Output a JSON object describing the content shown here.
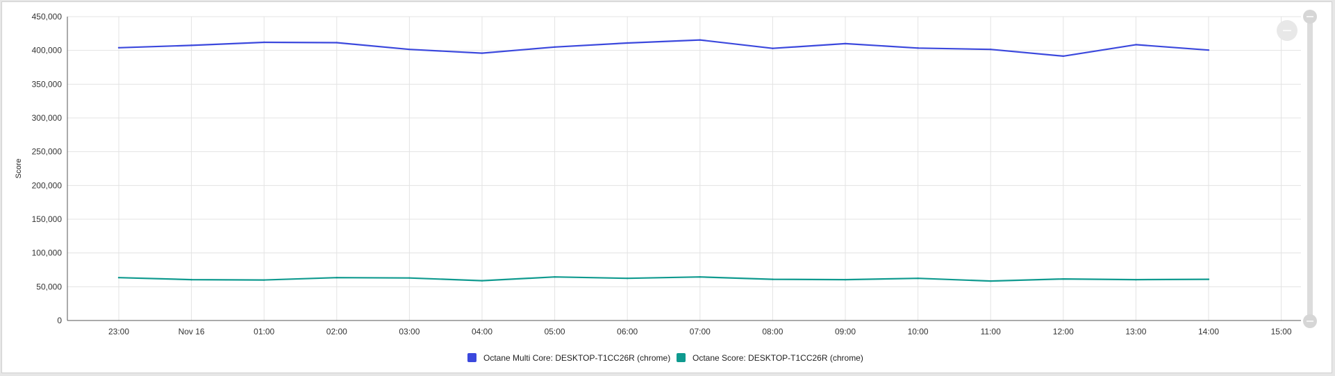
{
  "chart_data": {
    "type": "line",
    "ylabel": "Score",
    "ylim": [
      0,
      450000
    ],
    "yticks": [
      0,
      50000,
      100000,
      150000,
      200000,
      250000,
      300000,
      350000,
      400000,
      450000
    ],
    "ytick_labels": [
      "0",
      "50,000",
      "100,000",
      "150,000",
      "200,000",
      "250,000",
      "300,000",
      "350,000",
      "400,000",
      "450,000"
    ],
    "xtick_labels": [
      "23:00",
      "Nov 16",
      "01:00",
      "02:00",
      "03:00",
      "04:00",
      "05:00",
      "06:00",
      "07:00",
      "08:00",
      "09:00",
      "10:00",
      "11:00",
      "12:00",
      "13:00",
      "14:00",
      "15:00"
    ],
    "x": [
      "23:00",
      "Nov 16",
      "01:00",
      "02:00",
      "03:00",
      "04:00",
      "05:00",
      "06:00",
      "07:00",
      "08:00",
      "09:00",
      "10:00",
      "11:00",
      "12:00",
      "13:00",
      "14:00"
    ],
    "grid": true,
    "legend_position": "bottom",
    "series": [
      {
        "name": "Octane Multi Core: DESKTOP-T1CC26R (chrome)",
        "color": "#3b48dd",
        "values": [
          404000,
          407500,
          412000,
          411500,
          401500,
          396000,
          405000,
          411000,
          415500,
          403000,
          410000,
          403500,
          401500,
          391500,
          408500,
          400500
        ]
      },
      {
        "name": "Octane Score: DESKTOP-T1CC26R (chrome)",
        "color": "#0f9a8f",
        "values": [
          63500,
          60500,
          60000,
          63500,
          63000,
          59000,
          64500,
          62500,
          64500,
          61000,
          60500,
          62500,
          58500,
          61500,
          60500,
          61000
        ]
      }
    ]
  },
  "range_slider": {
    "top_handle_icon": "minus-icon",
    "bottom_handle_icon": "minus-icon",
    "zoom_button_icon": "minus-icon"
  }
}
